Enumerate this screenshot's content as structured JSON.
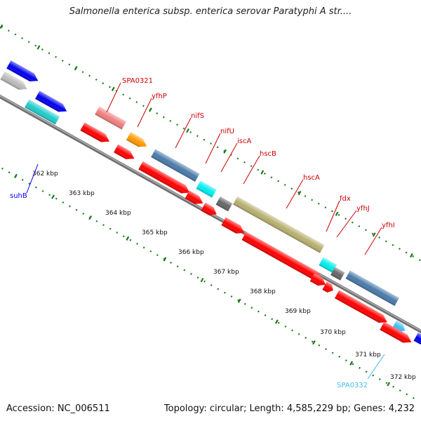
{
  "title": "Salmonella enterica subsp. enterica serovar Paratyphi A str....",
  "footer": {
    "accession": "Accession: NC_006511",
    "topology": "Topology: circular; Length: 4,585,229 bp; Genes: 4,232"
  },
  "scale": {
    "unit": "kbp",
    "ticks": [
      "362 kbp",
      "363 kbp",
      "364 kbp",
      "365 kbp",
      "366 kbp",
      "367 kbp",
      "368 kbp",
      "369 kbp",
      "370 kbp",
      "371 kbp",
      "372 kbp"
    ]
  },
  "genes": [
    {
      "name": "suhB",
      "color": "#00008b",
      "strand": "forward"
    },
    {
      "name": "SPA0321",
      "color": "#cc0000",
      "strand": "forward"
    },
    {
      "name": "yfhP",
      "color": "#cc0000",
      "strand": "forward"
    },
    {
      "name": "nifS",
      "color": "#cc0000",
      "strand": "forward"
    },
    {
      "name": "nifU",
      "color": "#cc0000",
      "strand": "forward"
    },
    {
      "name": "iscA",
      "color": "#cc0000",
      "strand": "forward"
    },
    {
      "name": "hscB",
      "color": "#cc0000",
      "strand": "forward"
    },
    {
      "name": "hscA",
      "color": "#cc0000",
      "strand": "forward"
    },
    {
      "name": "fdx",
      "color": "#cc0000",
      "strand": "forward"
    },
    {
      "name": "yfhJ",
      "color": "#cc0000",
      "strand": "forward"
    },
    {
      "name": "yfhI",
      "color": "#cc0000",
      "strand": "forward"
    },
    {
      "name": "SPA0332",
      "color": "#33bbee",
      "strand": "forward"
    }
  ],
  "colors": {
    "backbone": "#8a8a8a",
    "dots": "#1a7a1a",
    "cds": "#ff0000",
    "cog_blue": "#0000ee",
    "cog_grey": "#bbbbbb",
    "cog_cyan": "#22cccc",
    "cog_salmon": "#f08080",
    "cog_orange": "#ff9900",
    "cog_steel": "#4a7aaa",
    "cog_aqua": "#00eeee",
    "cog_darkgrey": "#666666",
    "cog_khaki": "#b8b070",
    "cog_sky": "#44bbee"
  }
}
